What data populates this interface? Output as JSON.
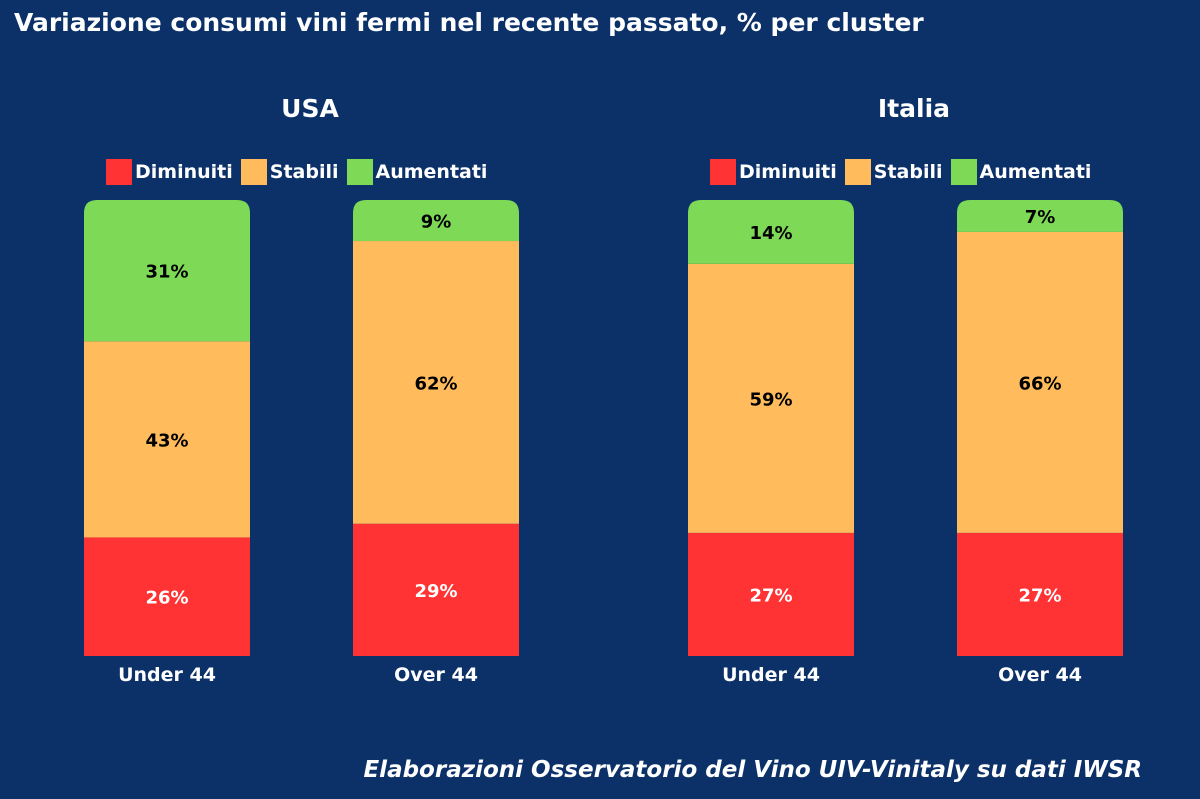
{
  "title": "Variazione consumi vini fermi nel recente passato, % per cluster",
  "source": "Elaborazioni Osservatorio del Vino UIV-Vinitaly su dati IWSR",
  "legend": {
    "diminuiti": "Diminuiti",
    "stabili": "Stabili",
    "aumentati": "Aumentati"
  },
  "colors": {
    "background": "#0b3168",
    "diminuiti": "#ff3333",
    "stabili": "#ffbb5c",
    "aumentati": "#7ed957"
  },
  "chart_data": [
    {
      "type": "bar",
      "stacked": true,
      "title": "USA",
      "categories": [
        "Under 44",
        "Over 44"
      ],
      "series": [
        {
          "name": "Diminuiti",
          "values": [
            26,
            29
          ],
          "labels": [
            "26%",
            "29%"
          ]
        },
        {
          "name": "Stabili",
          "values": [
            43,
            62
          ],
          "labels": [
            "43%",
            "62%"
          ]
        },
        {
          "name": "Aumentati",
          "values": [
            31,
            9
          ],
          "labels": [
            "31%",
            "9%"
          ]
        }
      ],
      "ylim": [
        0,
        100
      ],
      "grid": false,
      "legend_position": "top"
    },
    {
      "type": "bar",
      "stacked": true,
      "title": "Italia",
      "categories": [
        "Under 44",
        "Over 44"
      ],
      "series": [
        {
          "name": "Diminuiti",
          "values": [
            27,
            27
          ],
          "labels": [
            "27%",
            "27%"
          ]
        },
        {
          "name": "Stabili",
          "values": [
            59,
            66
          ],
          "labels": [
            "59%",
            "66%"
          ]
        },
        {
          "name": "Aumentati",
          "values": [
            14,
            7
          ],
          "labels": [
            "14%",
            "7%"
          ]
        }
      ],
      "ylim": [
        0,
        100
      ],
      "grid": false,
      "legend_position": "top"
    }
  ]
}
